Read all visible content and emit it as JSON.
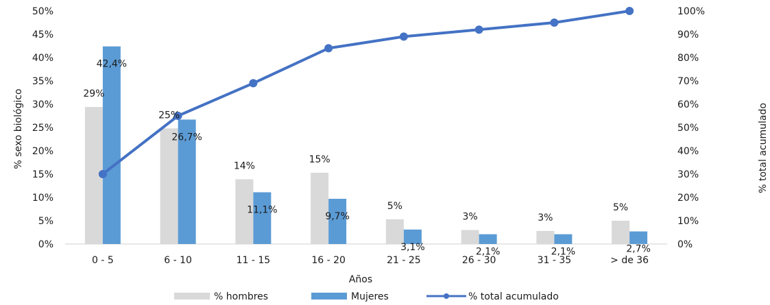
{
  "chart_data": {
    "type": "bar",
    "categories": [
      "0 - 5",
      "6 - 10",
      "11 - 15",
      "16 - 20",
      "21 - 25",
      "26 - 30",
      "31 - 35",
      "> de 36"
    ],
    "series": [
      {
        "name": "% hombres",
        "type": "bar",
        "axis": "left",
        "color": "#d9d9d9",
        "values": [
          29.4,
          24.8,
          13.9,
          15.3,
          5.3,
          3.0,
          2.8,
          5.0
        ],
        "labels": [
          "29%",
          "25%",
          "14%",
          "15%",
          "5%",
          "3%",
          "3%",
          "5%"
        ]
      },
      {
        "name": "Mujeres",
        "type": "bar",
        "axis": "left",
        "color": "#5b9bd5",
        "values": [
          42.4,
          26.7,
          11.1,
          9.7,
          3.1,
          2.1,
          2.1,
          2.7
        ],
        "labels": [
          "42,4%",
          "26,7%",
          "11,1%",
          "9,7%",
          "3,1%",
          "2,1%",
          "2,1%",
          "2,7%"
        ]
      },
      {
        "name": "% total acumulado",
        "type": "line",
        "axis": "right",
        "color": "#4472c4",
        "values": [
          30,
          55,
          69,
          84,
          89,
          92,
          95,
          100
        ]
      }
    ],
    "xlabel": "Años",
    "ylabel": "% sexo biológico",
    "y2label": "% total acumulado",
    "ylim": [
      0,
      50
    ],
    "y2lim": [
      0,
      100
    ],
    "yticks": [
      "0%",
      "5%",
      "10%",
      "15%",
      "20%",
      "25%",
      "30%",
      "35%",
      "40%",
      "45%",
      "50%"
    ],
    "y2ticks": [
      "0%",
      "10%",
      "20%",
      "30%",
      "40%",
      "50%",
      "60%",
      "70%",
      "80%",
      "90%",
      "100%"
    ],
    "grid": false,
    "legend_position": "bottom"
  }
}
